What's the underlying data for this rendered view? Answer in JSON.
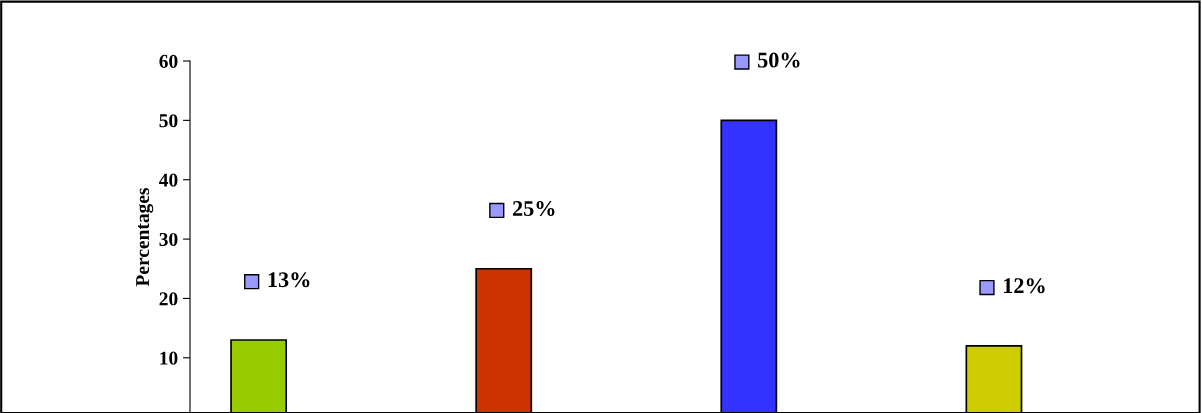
{
  "chart_data": {
    "type": "bar",
    "ylabel": "Percentages",
    "categories": [
      null,
      null,
      null,
      null
    ],
    "values": [
      13,
      25,
      50,
      12
    ],
    "colors": [
      "#99cc00",
      "#cc3300",
      "#3333ff",
      "#cccc00"
    ],
    "value_labels": [
      "13%",
      "25%",
      "50%",
      "12%"
    ],
    "ylim": [
      0.7,
      60
    ],
    "yticks": [
      10,
      20,
      30,
      40,
      50,
      60
    ],
    "grid": false,
    "legend": false
  }
}
